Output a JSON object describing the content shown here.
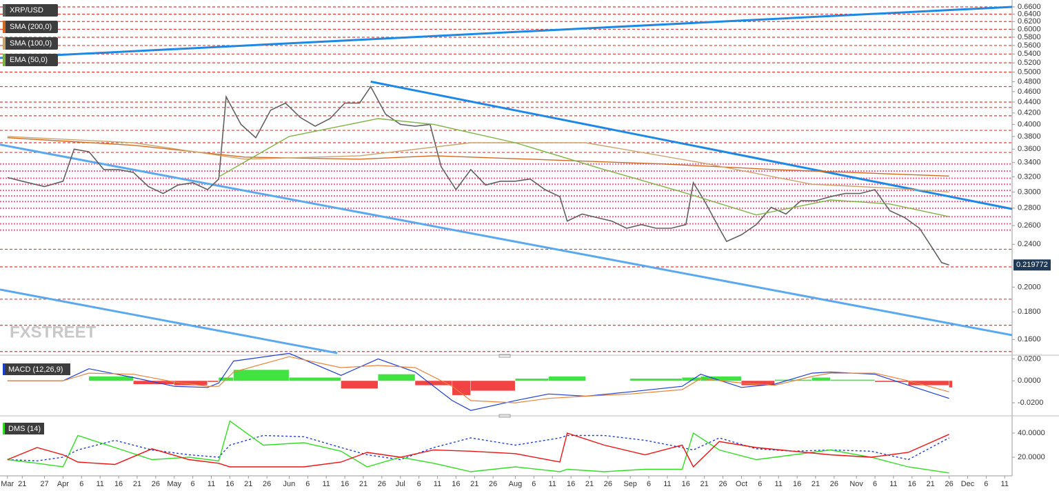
{
  "chart_data": [
    {
      "type": "line",
      "yscale": "log",
      "xlim": [
        "Mar 15",
        "Dec 13"
      ],
      "ylim": [
        0.151,
        0.66
      ],
      "yticks": [
        {
          "value": 0.66,
          "label": "0.6600"
        },
        {
          "value": 0.64,
          "label": "0.6400"
        },
        {
          "value": 0.62,
          "label": "0.6200"
        },
        {
          "value": 0.6,
          "label": "0.6000"
        },
        {
          "value": 0.58,
          "label": "0.5800"
        },
        {
          "value": 0.56,
          "label": "0.5600"
        },
        {
          "value": 0.54,
          "label": "0.5400"
        },
        {
          "value": 0.52,
          "label": "0.5200"
        },
        {
          "value": 0.5,
          "label": "0.5000"
        },
        {
          "value": 0.48,
          "label": "0.4800"
        },
        {
          "value": 0.46,
          "label": "0.4600"
        },
        {
          "value": 0.44,
          "label": "0.4400"
        },
        {
          "value": 0.42,
          "label": "0.4200"
        },
        {
          "value": 0.4,
          "label": "0.4000"
        },
        {
          "value": 0.38,
          "label": "0.3800"
        },
        {
          "value": 0.36,
          "label": "0.3600"
        },
        {
          "value": 0.34,
          "label": "0.3400"
        },
        {
          "value": 0.32,
          "label": "0.3200"
        },
        {
          "value": 0.3,
          "label": "0.3000"
        },
        {
          "value": 0.28,
          "label": "0.2800"
        },
        {
          "value": 0.26,
          "label": "0.2600"
        },
        {
          "value": 0.24,
          "label": "0.2400"
        },
        {
          "value": 0.2,
          "label": "0.2000"
        },
        {
          "value": 0.18,
          "label": "0.1800"
        },
        {
          "value": 0.16,
          "label": "0.1600"
        }
      ],
      "series": [
        {
          "name": "XRP/USD",
          "color": "#606060",
          "x": [
            "Mar 17",
            "Mar 21",
            "Mar 27",
            "Apr 1",
            "Apr 4",
            "Apr 8",
            "Apr 12",
            "Apr 16",
            "Apr 20",
            "Apr 24",
            "Apr 28",
            "May 2",
            "May 6",
            "May 10",
            "May 13",
            "May 15",
            "May 19",
            "May 23",
            "May 27",
            "May 31",
            "Jun 4",
            "Jun 8",
            "Jun 12",
            "Jun 16",
            "Jun 20",
            "Jun 23",
            "Jun 27",
            "Jul 1",
            "Jul 5",
            "Jul 9",
            "Jul 12",
            "Jul 16",
            "Jul 20",
            "Jul 24",
            "Jul 28",
            "Aug 1",
            "Aug 5",
            "Aug 9",
            "Aug 13",
            "Aug 15",
            "Aug 19",
            "Aug 23",
            "Aug 27",
            "Aug 31",
            "Sep 4",
            "Sep 8",
            "Sep 12",
            "Sep 16",
            "Sep 18",
            "Sep 21",
            "Sep 25",
            "Sep 27",
            "Oct 1",
            "Oct 5",
            "Oct 9",
            "Oct 13",
            "Oct 17",
            "Oct 21",
            "Oct 25",
            "Oct 29",
            "Nov 2",
            "Nov 6",
            "Nov 10",
            "Nov 14",
            "Nov 18",
            "Nov 21",
            "Nov 24",
            "Nov 26"
          ],
          "values": [
            0.319,
            0.314,
            0.307,
            0.314,
            0.36,
            0.356,
            0.33,
            0.33,
            0.326,
            0.307,
            0.298,
            0.309,
            0.312,
            0.303,
            0.317,
            0.45,
            0.4,
            0.378,
            0.425,
            0.438,
            0.412,
            0.397,
            0.41,
            0.438,
            0.438,
            0.47,
            0.418,
            0.4,
            0.397,
            0.4,
            0.334,
            0.303,
            0.33,
            0.309,
            0.314,
            0.314,
            0.317,
            0.303,
            0.294,
            0.265,
            0.273,
            0.269,
            0.265,
            0.257,
            0.261,
            0.257,
            0.257,
            0.261,
            0.312,
            0.289,
            0.257,
            0.243,
            0.25,
            0.261,
            0.281,
            0.273,
            0.289,
            0.289,
            0.294,
            0.298,
            0.298,
            0.303,
            0.277,
            0.269,
            0.257,
            0.239,
            0.222,
            0.219772
          ]
        },
        {
          "name": "SMA (200,0)",
          "color": "#d2691e",
          "x": [
            "Mar 17",
            "Apr 20",
            "May 20",
            "Jun 20",
            "Jul 10",
            "Aug 10",
            "Sep 10",
            "Oct 10",
            "Nov 10",
            "Nov 26"
          ],
          "values": [
            0.378,
            0.366,
            0.348,
            0.345,
            0.35,
            0.344,
            0.338,
            0.33,
            0.324,
            0.321
          ]
        },
        {
          "name": "SMA (100,0)",
          "color": "#c9a46a",
          "x": [
            "Mar 17",
            "Apr 20",
            "May 20",
            "Jun 20",
            "Jul 20",
            "Aug 20",
            "Sep 20",
            "Oct 20",
            "Nov 10",
            "Nov 26"
          ],
          "values": [
            0.38,
            0.37,
            0.345,
            0.35,
            0.37,
            0.37,
            0.34,
            0.31,
            0.305,
            0.3
          ]
        },
        {
          "name": "EMA (50,0)",
          "color": "#7cb342",
          "x": [
            "May 13",
            "Jun 1",
            "Jun 25",
            "Jul 10",
            "Aug 1",
            "Aug 25",
            "Sep 15",
            "Oct 5",
            "Oct 25",
            "Nov 10",
            "Nov 26"
          ],
          "values": [
            0.32,
            0.38,
            0.41,
            0.4,
            0.37,
            0.33,
            0.3,
            0.272,
            0.29,
            0.285,
            0.27
          ]
        }
      ],
      "trend_lines": [
        {
          "color": "#1e88e5",
          "x": [
            "Mar 15",
            "Dec 13"
          ],
          "values": [
            0.531,
            0.66
          ]
        },
        {
          "color": "#1e88e5",
          "x": [
            "Jun 23",
            "Dec 13"
          ],
          "values": [
            0.48,
            0.279
          ]
        },
        {
          "color": "#5aa9f0",
          "x": [
            "Mar 15",
            "Dec 13"
          ],
          "values": [
            0.367,
            0.163
          ]
        },
        {
          "color": "#5aa9f0",
          "x": [
            "Mar 15",
            "Jun 14"
          ],
          "values": [
            0.198,
            0.151
          ]
        }
      ],
      "levels_red": [
        0.66,
        0.64,
        0.62,
        0.6,
        0.58,
        0.56,
        0.54,
        0.52,
        0.5,
        0.47,
        0.44,
        0.43,
        0.415,
        0.39,
        0.37,
        0.355,
        0.235,
        0.218,
        0.19,
        0.17,
        0.152
      ],
      "levels_pink": [
        0.338,
        0.328,
        0.318,
        0.31,
        0.302,
        0.295,
        0.288,
        0.28,
        0.27,
        0.262,
        0.255
      ],
      "level_red_color": "#e53935",
      "level_pink_color": "#f06292",
      "last_price": 0.219772,
      "watermark": "FXSTREET"
    },
    {
      "type": "macd",
      "title": "MACD (12,26,9)",
      "ylim": [
        -0.03,
        0.0215
      ],
      "yticks": [
        {
          "value": 0.02,
          "label": "0.0200"
        },
        {
          "value": 0,
          "label": "0.0000"
        },
        {
          "value": -0.02,
          "label": "-0.0200"
        }
      ],
      "x": [
        "Mar 17",
        "Apr 1",
        "Apr 8",
        "Apr 20",
        "May 1",
        "May 10",
        "May 13",
        "May 17",
        "Jun 1",
        "Jun 15",
        "Jun 25",
        "Jul 5",
        "Jul 15",
        "Jul 20",
        "Aug 1",
        "Aug 10",
        "Aug 20",
        "Sep 1",
        "Sep 15",
        "Sep 20",
        "Oct 1",
        "Oct 10",
        "Oct 20",
        "Oct 25",
        "Nov 6",
        "Nov 15",
        "Nov 26"
      ],
      "macd": {
        "color": "#1e3fd0",
        "values": [
          0,
          0,
          0.011,
          0.003,
          -0.005,
          -0.006,
          -0.002,
          0.018,
          0.025,
          0.005,
          0.02,
          0.008,
          -0.018,
          -0.027,
          -0.018,
          -0.012,
          -0.014,
          -0.01,
          -0.005,
          0.006,
          -0.006,
          -0.003,
          0.007,
          0.008,
          0.006,
          -0.004,
          -0.016
        ]
      },
      "signal": {
        "color": "#e8823a",
        "values": [
          0,
          0,
          0.007,
          0.006,
          -0.001,
          -0.005,
          -0.005,
          0.008,
          0.022,
          0.012,
          0.014,
          0.012,
          -0.005,
          -0.018,
          -0.02,
          -0.016,
          -0.014,
          -0.012,
          -0.008,
          0.002,
          -0.002,
          -0.004,
          0.004,
          0.007,
          0.007,
          0,
          -0.01
        ]
      },
      "histogram": {
        "up_color": "#22dd22",
        "down_color": "#ee2222",
        "values": [
          0,
          0,
          0.004,
          -0.003,
          -0.004,
          -0.001,
          0.003,
          0.01,
          0.003,
          -0.007,
          0.006,
          -0.004,
          -0.013,
          -0.009,
          0.002,
          0.004,
          0,
          0.002,
          0.003,
          0.004,
          -0.004,
          0.001,
          0.003,
          0.001,
          -0.001,
          -0.004,
          -0.006
        ]
      }
    },
    {
      "type": "line",
      "title": "DMS (14)",
      "ylim": [
        4.6,
        52
      ],
      "yticks": [
        {
          "value": 40,
          "label": "40.0000"
        },
        {
          "value": 20,
          "label": "20.0000"
        }
      ],
      "x": [
        "Mar 17",
        "Mar 25",
        "Apr 1",
        "Apr 5",
        "Apr 15",
        "Apr 25",
        "May 5",
        "May 13",
        "May 16",
        "May 25",
        "Jun 5",
        "Jun 15",
        "Jun 22",
        "Jul 1",
        "Jul 10",
        "Jul 20",
        "Aug 1",
        "Aug 13",
        "Aug 15",
        "Aug 25",
        "Sep 5",
        "Sep 15",
        "Sep 18",
        "Sep 25",
        "Oct 5",
        "Oct 15",
        "Oct 25",
        "Nov 5",
        "Nov 15",
        "Nov 26"
      ],
      "series": [
        {
          "color": "#1e3fd0",
          "dashed": true,
          "values": [
            18,
            17,
            20,
            26,
            34,
            26,
            22,
            20,
            30,
            38,
            37,
            28,
            22,
            18,
            28,
            36,
            30,
            36,
            38,
            38,
            34,
            28,
            26,
            36,
            27,
            25,
            26,
            25,
            18,
            36
          ]
        },
        {
          "color": "#33dd22",
          "values": [
            18,
            15,
            12,
            38,
            28,
            18,
            20,
            17,
            50,
            30,
            32,
            25,
            12,
            20,
            15,
            8,
            12,
            8,
            10,
            8,
            10,
            10,
            40,
            26,
            18,
            22,
            26,
            20,
            12,
            7
          ]
        },
        {
          "color": "#ee1111",
          "values": [
            18,
            28,
            22,
            16,
            14,
            27,
            18,
            15,
            12,
            12,
            12,
            16,
            24,
            20,
            26,
            25,
            23,
            16,
            40,
            30,
            22,
            30,
            12,
            33,
            28,
            25,
            22,
            20,
            24,
            39
          ]
        }
      ],
      "xticks": [
        {
          "value": "Mar 17",
          "label": "Mar"
        },
        {
          "value": "Mar 21",
          "label": "21"
        },
        {
          "value": "Mar 27",
          "label": "27"
        },
        {
          "value": "Apr 1",
          "label": "Apr"
        },
        {
          "value": "Apr 6",
          "label": "6"
        },
        {
          "value": "Apr 11",
          "label": "11"
        },
        {
          "value": "Apr 16",
          "label": "16"
        },
        {
          "value": "Apr 21",
          "label": "21"
        },
        {
          "value": "Apr 26",
          "label": "26"
        },
        {
          "value": "May 1",
          "label": "May"
        },
        {
          "value": "May 6",
          "label": "6"
        },
        {
          "value": "May 11",
          "label": "11"
        },
        {
          "value": "May 16",
          "label": "16"
        },
        {
          "value": "May 21",
          "label": "21"
        },
        {
          "value": "May 26",
          "label": "26"
        },
        {
          "value": "Jun 1",
          "label": "Jun"
        },
        {
          "value": "Jun 6",
          "label": "6"
        },
        {
          "value": "Jun 11",
          "label": "11"
        },
        {
          "value": "Jun 16",
          "label": "16"
        },
        {
          "value": "Jun 21",
          "label": "21"
        },
        {
          "value": "Jun 26",
          "label": "26"
        },
        {
          "value": "Jul 1",
          "label": "Jul"
        },
        {
          "value": "Jul 6",
          "label": "6"
        },
        {
          "value": "Jul 11",
          "label": "11"
        },
        {
          "value": "Jul 16",
          "label": "16"
        },
        {
          "value": "Jul 21",
          "label": "21"
        },
        {
          "value": "Jul 26",
          "label": "26"
        },
        {
          "value": "Aug 1",
          "label": "Aug"
        },
        {
          "value": "Aug 6",
          "label": "6"
        },
        {
          "value": "Aug 11",
          "label": "11"
        },
        {
          "value": "Aug 16",
          "label": "16"
        },
        {
          "value": "Aug 21",
          "label": "21"
        },
        {
          "value": "Aug 26",
          "label": "26"
        },
        {
          "value": "Sep 1",
          "label": "Sep"
        },
        {
          "value": "Sep 6",
          "label": "6"
        },
        {
          "value": "Sep 11",
          "label": "11"
        },
        {
          "value": "Sep 16",
          "label": "16"
        },
        {
          "value": "Sep 21",
          "label": "21"
        },
        {
          "value": "Sep 26",
          "label": "26"
        },
        {
          "value": "Oct 1",
          "label": "Oct"
        },
        {
          "value": "Oct 6",
          "label": "6"
        },
        {
          "value": "Oct 11",
          "label": "11"
        },
        {
          "value": "Oct 16",
          "label": "16"
        },
        {
          "value": "Oct 21",
          "label": "21"
        },
        {
          "value": "Oct 26",
          "label": "26"
        },
        {
          "value": "Nov 1",
          "label": "Nov"
        },
        {
          "value": "Nov 6",
          "label": "6"
        },
        {
          "value": "Nov 11",
          "label": "11"
        },
        {
          "value": "Nov 16",
          "label": "16"
        },
        {
          "value": "Nov 21",
          "label": "21"
        },
        {
          "value": "Nov 26",
          "label": "26"
        },
        {
          "value": "Dec 1",
          "label": "Dec"
        },
        {
          "value": "Dec 6",
          "label": "6"
        },
        {
          "value": "Dec 11",
          "label": "11"
        }
      ]
    }
  ]
}
